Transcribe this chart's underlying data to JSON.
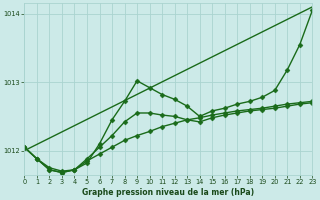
{
  "title": "Graphe pression niveau de la mer (hPa)",
  "background_color": "#cceae8",
  "grid_color": "#aad4d0",
  "line_color": "#1a6b1a",
  "text_color": "#1a4a1a",
  "xlim": [
    0,
    23
  ],
  "ylim": [
    1011.65,
    1014.15
  ],
  "yticks": [
    1012,
    1013,
    1014
  ],
  "xticks": [
    0,
    1,
    2,
    3,
    4,
    5,
    6,
    7,
    8,
    9,
    10,
    11,
    12,
    13,
    14,
    15,
    16,
    17,
    18,
    19,
    20,
    21,
    22,
    23
  ],
  "series": [
    {
      "x": [
        0,
        23
      ],
      "y": [
        1012.0,
        1014.1
      ],
      "marker": null,
      "linewidth": 1.0
    },
    {
      "x": [
        0,
        1,
        2,
        3,
        4,
        5,
        6,
        7,
        8,
        9,
        10,
        11,
        12,
        13,
        14,
        15,
        16,
        17,
        18,
        19,
        20,
        21,
        22,
        23
      ],
      "y": [
        1012.05,
        1011.88,
        1011.75,
        1011.7,
        1011.72,
        1011.82,
        1012.1,
        1012.45,
        1012.72,
        1013.02,
        1012.92,
        1012.82,
        1012.75,
        1012.65,
        1012.5,
        1012.58,
        1012.62,
        1012.68,
        1012.72,
        1012.78,
        1012.88,
        1013.18,
        1013.55,
        1014.05
      ],
      "marker": "D",
      "markersize": 2.5,
      "linewidth": 1.0
    },
    {
      "x": [
        0,
        1,
        2,
        3,
        4,
        5,
        6,
        7,
        8,
        9,
        10,
        11,
        12,
        13,
        14,
        15,
        16,
        17,
        18,
        19,
        20,
        21,
        22,
        23
      ],
      "y": [
        1012.05,
        1011.88,
        1011.72,
        1011.68,
        1011.72,
        1011.85,
        1011.95,
        1012.05,
        1012.15,
        1012.22,
        1012.28,
        1012.35,
        1012.4,
        1012.45,
        1012.48,
        1012.52,
        1012.55,
        1012.58,
        1012.6,
        1012.62,
        1012.65,
        1012.68,
        1012.7,
        1012.72
      ],
      "marker": "D",
      "markersize": 2.5,
      "linewidth": 1.0
    },
    {
      "x": [
        0,
        1,
        2,
        3,
        4,
        5,
        6,
        7,
        8,
        9,
        10,
        11,
        12,
        13,
        14,
        15,
        16,
        17,
        18,
        19,
        20,
        21,
        22,
        23
      ],
      "y": [
        1012.05,
        1011.88,
        1011.72,
        1011.68,
        1011.72,
        1011.88,
        1012.05,
        1012.22,
        1012.42,
        1012.55,
        1012.55,
        1012.52,
        1012.5,
        1012.45,
        1012.42,
        1012.48,
        1012.52,
        1012.55,
        1012.58,
        1012.6,
        1012.62,
        1012.65,
        1012.68,
        1012.7
      ],
      "marker": "D",
      "markersize": 2.5,
      "linewidth": 1.0
    }
  ]
}
